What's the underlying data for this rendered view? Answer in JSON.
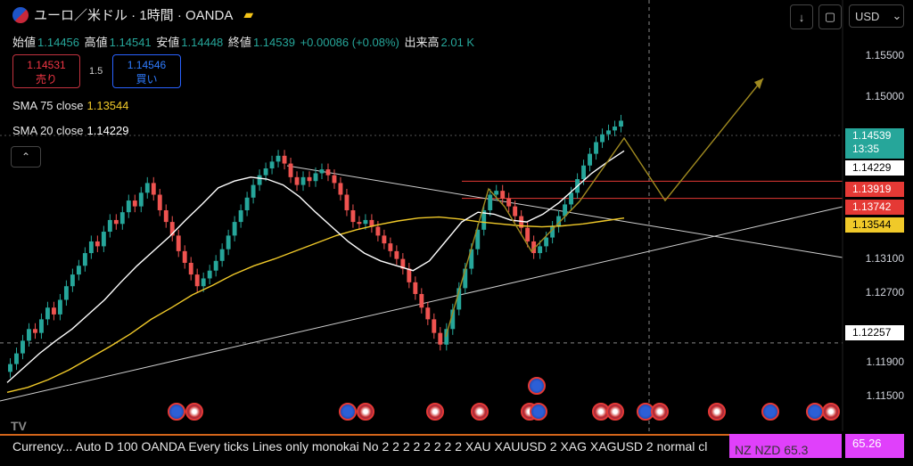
{
  "header": {
    "title": "ユーロ／米ドル · 1時間 · OANDA",
    "ohlc": {
      "open_label": "始値",
      "open": "1.14456",
      "high_label": "高値",
      "high": "1.14541",
      "low_label": "安値",
      "low": "1.14448",
      "close_label": "終値",
      "close": "1.14539",
      "change": "+0.00086 (+0.08%)",
      "volume_label": "出来高",
      "volume": "2.01 K"
    }
  },
  "toolbar": {
    "currency": "USD"
  },
  "trade": {
    "sell_price": "1.14531",
    "sell_label": "売り",
    "spread": "1.5",
    "buy_price": "1.14546",
    "buy_label": "買い"
  },
  "indicators": [
    {
      "name": "SMA 75 close",
      "value": "1.13544"
    },
    {
      "name": "SMA 20 close",
      "value": "1.14229"
    }
  ],
  "price_axis": {
    "ticks": [
      "1.15500",
      "1.15000",
      "1.13100",
      "1.12700",
      "1.11900",
      "1.11500"
    ]
  },
  "price_labels": {
    "last": "1.14539",
    "countdown": "13:35",
    "sma20": "1.14229",
    "level_red_1": "1.13919",
    "level_red_2": "1.13742",
    "sma75": "1.13544",
    "crosshair": "1.12257"
  },
  "colors": {
    "up": "#26a69a",
    "down": "#ef5350",
    "sma75": "#f0c929",
    "sma20": "#ffffff",
    "level": "#e53935",
    "projection": "#a08a20"
  },
  "ticker": {
    "text": "Currency... Auto D 100 OANDA Every ticks Lines only monokai No 2 2 2 2 2 2 2 2 XAU XAUUSD 2 XAG XAGUSD 2 normal cl",
    "overlay_left": "NZ   NZD   65.3",
    "overlay_right": "65.26"
  },
  "chart_data": {
    "type": "candlestick",
    "title": "ユーロ／米ドル · 1時間 · OANDA",
    "ylim": [
      1.1135,
      1.1578
    ],
    "series": [
      {
        "name": "EURUSD",
        "close": [
          1.1204,
          1.1215,
          1.1228,
          1.124,
          1.1236,
          1.125,
          1.1262,
          1.1255,
          1.127,
          1.1284,
          1.1296,
          1.1305,
          1.1318,
          1.133,
          1.1325,
          1.134,
          1.1352,
          1.1348,
          1.136,
          1.1372,
          1.1366,
          1.138,
          1.139,
          1.1378,
          1.1362,
          1.135,
          1.1336,
          1.132,
          1.1308,
          1.1296,
          1.1284,
          1.1292,
          1.13,
          1.131,
          1.1322,
          1.1336,
          1.135,
          1.1362,
          1.1375,
          1.1388,
          1.1398,
          1.1405,
          1.1412,
          1.1418,
          1.141,
          1.1396,
          1.1388,
          1.1396,
          1.1392,
          1.14,
          1.1404,
          1.1398,
          1.139,
          1.1378,
          1.1362,
          1.135,
          1.1348,
          1.1352,
          1.1345,
          1.1336,
          1.1328,
          1.132,
          1.1312,
          1.1302,
          1.1288,
          1.1276,
          1.1262,
          1.125,
          1.1236,
          1.1224,
          1.124,
          1.126,
          1.1282,
          1.1302,
          1.1322,
          1.1342,
          1.1362,
          1.1378,
          1.1382,
          1.1374,
          1.1366,
          1.1356,
          1.1344,
          1.133,
          1.1318,
          1.1325,
          1.1334,
          1.1345,
          1.1356,
          1.1368,
          1.138,
          1.1394,
          1.1408,
          1.142,
          1.1432,
          1.144,
          1.1444,
          1.1448,
          1.1454
        ]
      }
    ],
    "sma75": [
      1.1175,
      1.118,
      1.1188,
      1.1198,
      1.121,
      1.1222,
      1.1235,
      1.125,
      1.1262,
      1.1275,
      1.1285,
      1.1296,
      1.1305,
      1.1312,
      1.132,
      1.1328,
      1.1336,
      1.1342,
      1.1347,
      1.1351,
      1.1354,
      1.1355,
      1.1353,
      1.135,
      1.1348,
      1.1346,
      1.1345,
      1.1346,
      1.1348,
      1.1351,
      1.1354
    ],
    "sma20": [
      1.1185,
      1.12,
      1.1215,
      1.1228,
      1.124,
      1.1255,
      1.127,
      1.1288,
      1.1305,
      1.132,
      1.1335,
      1.1352,
      1.1368,
      1.1385,
      1.1392,
      1.1396,
      1.1394,
      1.1388,
      1.1376,
      1.136,
      1.1345,
      1.133,
      1.1318,
      1.131,
      1.1305,
      1.13,
      1.131,
      1.133,
      1.135,
      1.136,
      1.1358,
      1.1352,
      1.135,
      1.1358,
      1.137,
      1.1385,
      1.14,
      1.1412,
      1.1423
    ],
    "horizontal_levels": [
      1.13919,
      1.13742
    ],
    "crosshair_price": 1.12257
  }
}
